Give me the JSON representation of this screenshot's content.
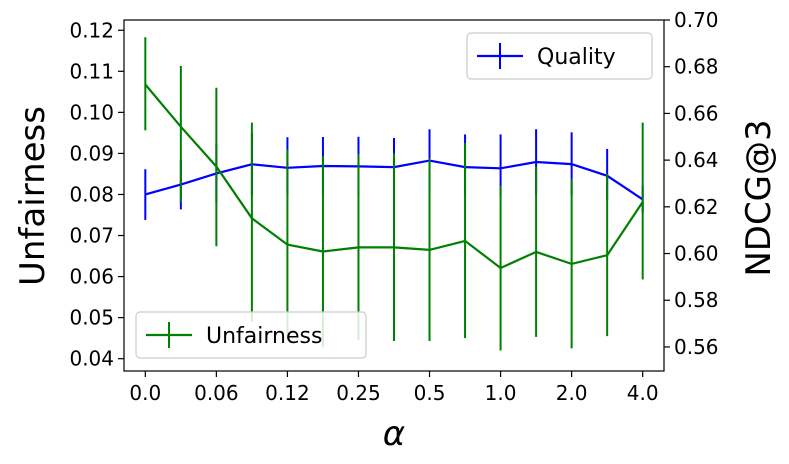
{
  "chart_data": {
    "type": "line",
    "xlabel": "α",
    "ylabel_left": "Unfairness",
    "ylabel_right": "NDCG@3",
    "x_tick_labels": [
      "0.0",
      "0.06",
      "0.12",
      "0.25",
      "0.5",
      "1.0",
      "2.0",
      "4.0"
    ],
    "x_positions": [
      0,
      1,
      2,
      3,
      4,
      5,
      6,
      7,
      8,
      9,
      10,
      11,
      12,
      13,
      14
    ],
    "x_tick_positions": [
      0,
      2,
      4,
      6,
      8,
      10,
      12,
      14
    ],
    "xlim": [
      -0.6,
      14.6
    ],
    "y_left": {
      "ylim": [
        0.037,
        0.1225
      ],
      "ticks": [
        0.04,
        0.05,
        0.06,
        0.07,
        0.08,
        0.09,
        0.1,
        0.11,
        0.12
      ],
      "tick_labels": [
        "0.04",
        "0.05",
        "0.06",
        "0.07",
        "0.08",
        "0.09",
        "0.10",
        "0.11",
        "0.12"
      ]
    },
    "y_right": {
      "ylim": [
        0.5497,
        0.7
      ],
      "ticks": [
        0.56,
        0.58,
        0.6,
        0.62,
        0.64,
        0.66,
        0.68,
        0.7
      ],
      "tick_labels": [
        "0.56",
        "0.58",
        "0.60",
        "0.62",
        "0.64",
        "0.66",
        "0.68",
        "0.70"
      ]
    },
    "series": [
      {
        "name": "Quality",
        "axis": "right",
        "color": "#0000ff",
        "values": [
          0.6253,
          0.6295,
          0.6343,
          0.6382,
          0.6367,
          0.6375,
          0.6373,
          0.637,
          0.6398,
          0.637,
          0.6365,
          0.6392,
          0.6383,
          0.6333,
          0.6232
        ],
        "err_low": [
          0.6144,
          0.6189,
          0.6217,
          0.625,
          0.6253,
          0.6254,
          0.625,
          0.6252,
          0.6262,
          0.625,
          0.625,
          0.6254,
          0.625,
          0.623,
          0.6175
        ],
        "err_high": [
          0.6361,
          0.64,
          0.647,
          0.6516,
          0.6498,
          0.6499,
          0.65,
          0.6495,
          0.6532,
          0.651,
          0.651,
          0.6532,
          0.6519,
          0.6448,
          0.6289
        ]
      },
      {
        "name": "Unfairness",
        "axis": "left",
        "color": "#008000",
        "values": [
          0.1068,
          0.0965,
          0.0868,
          0.0742,
          0.0678,
          0.0661,
          0.0671,
          0.0671,
          0.0665,
          0.0687,
          0.0621,
          0.066,
          0.0631,
          0.0652,
          0.0782
        ],
        "err_low": [
          0.0956,
          0.0782,
          0.0674,
          0.049,
          0.0445,
          0.0428,
          0.0445,
          0.0443,
          0.0443,
          0.045,
          0.042,
          0.0453,
          0.0425,
          0.0455,
          0.0593
        ],
        "err_high": [
          0.1183,
          0.1113,
          0.106,
          0.0975,
          0.091,
          0.0893,
          0.0898,
          0.09,
          0.0888,
          0.0925,
          0.0822,
          0.0868,
          0.0838,
          0.085,
          0.0975
        ]
      }
    ],
    "legends": [
      {
        "series": "Quality",
        "label": "Quality",
        "placement": "upper right"
      },
      {
        "series": "Unfairness",
        "label": "Unfairness",
        "placement": "lower left"
      }
    ],
    "grid": false
  }
}
